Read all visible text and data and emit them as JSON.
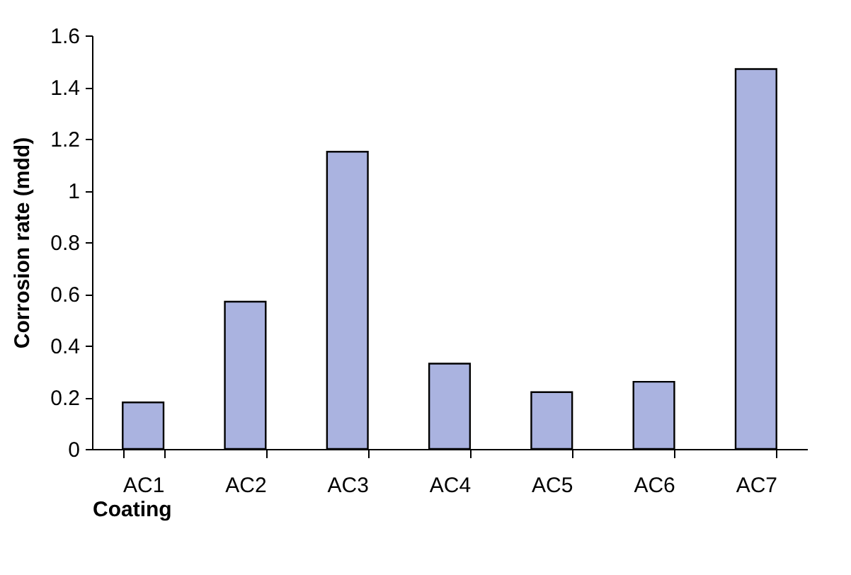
{
  "chart_data": {
    "type": "bar",
    "xlabel": "Coating",
    "ylabel": "Corrosion rate (mdd)",
    "categories": [
      "AC1",
      "AC2",
      "AC3",
      "AC4",
      "AC5",
      "AC6",
      "AC7"
    ],
    "values": [
      0.18,
      0.57,
      1.15,
      0.33,
      0.22,
      0.26,
      1.47
    ],
    "color": "#aab3e0",
    "ylim": [
      0,
      1.6
    ],
    "yticks": [
      0,
      0.2,
      0.4,
      0.6,
      0.8,
      1,
      1.2,
      1.4,
      1.6
    ],
    "grid": false
  }
}
